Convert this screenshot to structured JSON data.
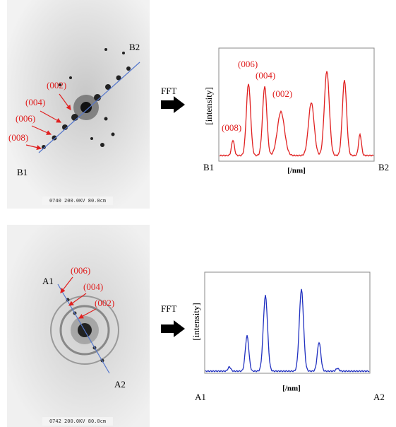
{
  "top": {
    "image_caption": "0740 200.0KV 80.0cm",
    "image_labels": [
      "(002)",
      "(004)",
      "(006)",
      "(008)"
    ],
    "start": "B1",
    "end": "B2",
    "transform": "FFT",
    "plot": {
      "y_label": "[intensity]",
      "x_label": "[/nm]",
      "start": "B1",
      "end": "B2",
      "peak_labels": [
        "(006)",
        "(004)",
        "(002)",
        "(008)"
      ]
    }
  },
  "bottom": {
    "image_caption": "0742 200.0KV 80.0cm",
    "image_labels": [
      "(006)",
      "(004)",
      "(002)"
    ],
    "start": "A1",
    "end": "A2",
    "transform": "FFT",
    "plot": {
      "y_label": "[intensity]",
      "x_label": "[/nm]",
      "start": "A1",
      "end": "A2"
    }
  }
}
